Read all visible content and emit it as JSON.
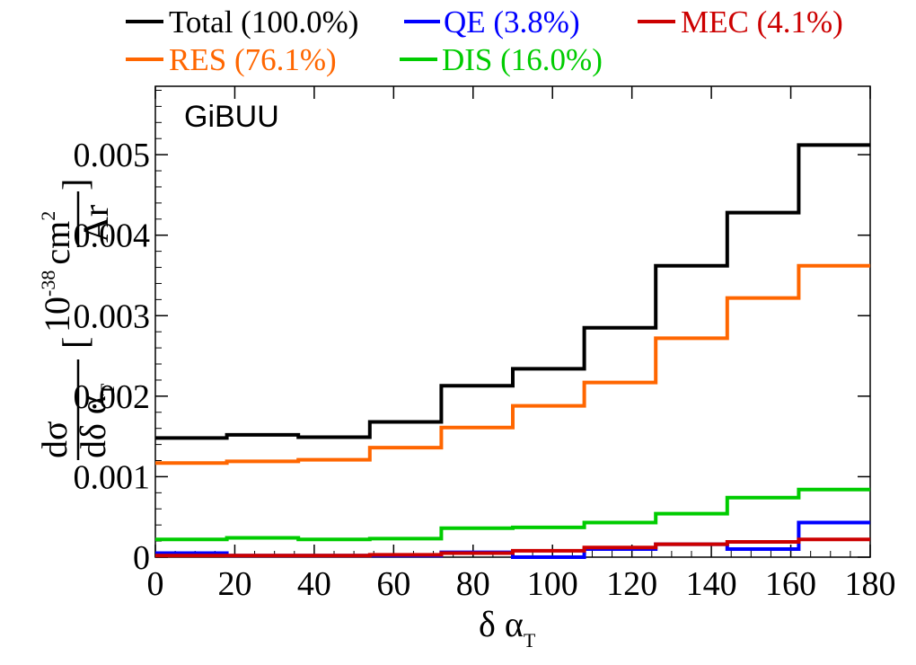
{
  "chart_data": {
    "type": "line",
    "annotation": "GiBUU",
    "xlabel": {
      "main": "δ α",
      "sub": "T"
    },
    "ylabel": {
      "d1": "dσ",
      "d2": "dδ α",
      "d2sub": "T",
      "unit_pre": "10",
      "unit_exp": "-38",
      "unit_num": "cm",
      "unit_num_exp": "2",
      "unit_den": "Ar"
    },
    "xlim": [
      0,
      180
    ],
    "ylim": [
      0,
      0.00585
    ],
    "x_ticks": [
      0,
      20,
      40,
      60,
      80,
      100,
      120,
      140,
      160,
      180
    ],
    "x_tick_labels": [
      "0",
      "20",
      "40",
      "60",
      "80",
      "100",
      "120",
      "140",
      "160",
      "180"
    ],
    "y_ticks": [
      0,
      0.001,
      0.002,
      0.003,
      0.004,
      0.005
    ],
    "y_tick_labels": [
      "0",
      "0.001",
      "0.002",
      "0.003",
      "0.004",
      "0.005"
    ],
    "bin_edges": [
      0,
      18,
      36,
      54,
      72,
      90,
      108,
      126,
      144,
      162,
      180
    ],
    "legend_position": "top",
    "series": [
      {
        "name": "Total (100.0%)",
        "color": "#000000",
        "values": [
          0.00148,
          0.00152,
          0.00149,
          0.00168,
          0.00213,
          0.00234,
          0.00285,
          0.00362,
          0.00428,
          0.00512
        ]
      },
      {
        "name": "QE (3.8%)",
        "color": "#0000ff",
        "values": [
          5e-05,
          2e-05,
          2e-05,
          2e-05,
          6e-05,
          0.0,
          0.0001,
          0.00016,
          0.0001,
          0.00043
        ]
      },
      {
        "name": "MEC (4.1%)",
        "color": "#cc0000",
        "values": [
          2e-05,
          2e-05,
          2e-05,
          3e-05,
          5e-05,
          8e-05,
          0.00012,
          0.00016,
          0.00019,
          0.00022
        ]
      },
      {
        "name": "RES (76.1%)",
        "color": "#ff6600",
        "values": [
          0.00117,
          0.00119,
          0.00121,
          0.00136,
          0.00161,
          0.00188,
          0.00217,
          0.00272,
          0.00322,
          0.00362
        ]
      },
      {
        "name": "DIS (16.0%)",
        "color": "#00cc00",
        "values": [
          0.00022,
          0.00024,
          0.00022,
          0.00023,
          0.00036,
          0.00037,
          0.00043,
          0.00054,
          0.00074,
          0.00084
        ]
      }
    ]
  }
}
